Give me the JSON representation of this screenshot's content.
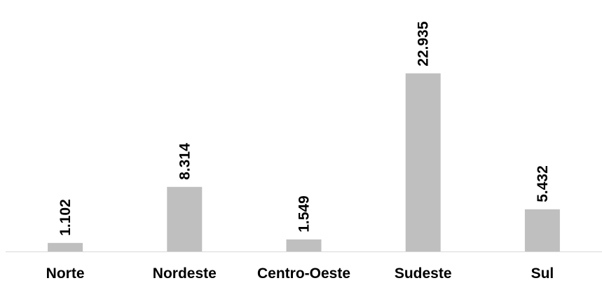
{
  "chart_data": {
    "type": "bar",
    "title": "",
    "xlabel": "",
    "ylabel": "",
    "categories": [
      "Norte",
      "Nordeste",
      "Centro-Oeste",
      "Sudeste",
      "Sul"
    ],
    "values": [
      1102,
      8314,
      1549,
      22935,
      5432
    ],
    "value_labels": [
      "1.102",
      "8.314",
      "1.549",
      "22.935",
      "5.432"
    ],
    "ylim": [
      0,
      23000
    ],
    "grid": false,
    "legend": "none",
    "bar_color": "#bfbfbf",
    "axis_color": "#d9d9d9"
  }
}
